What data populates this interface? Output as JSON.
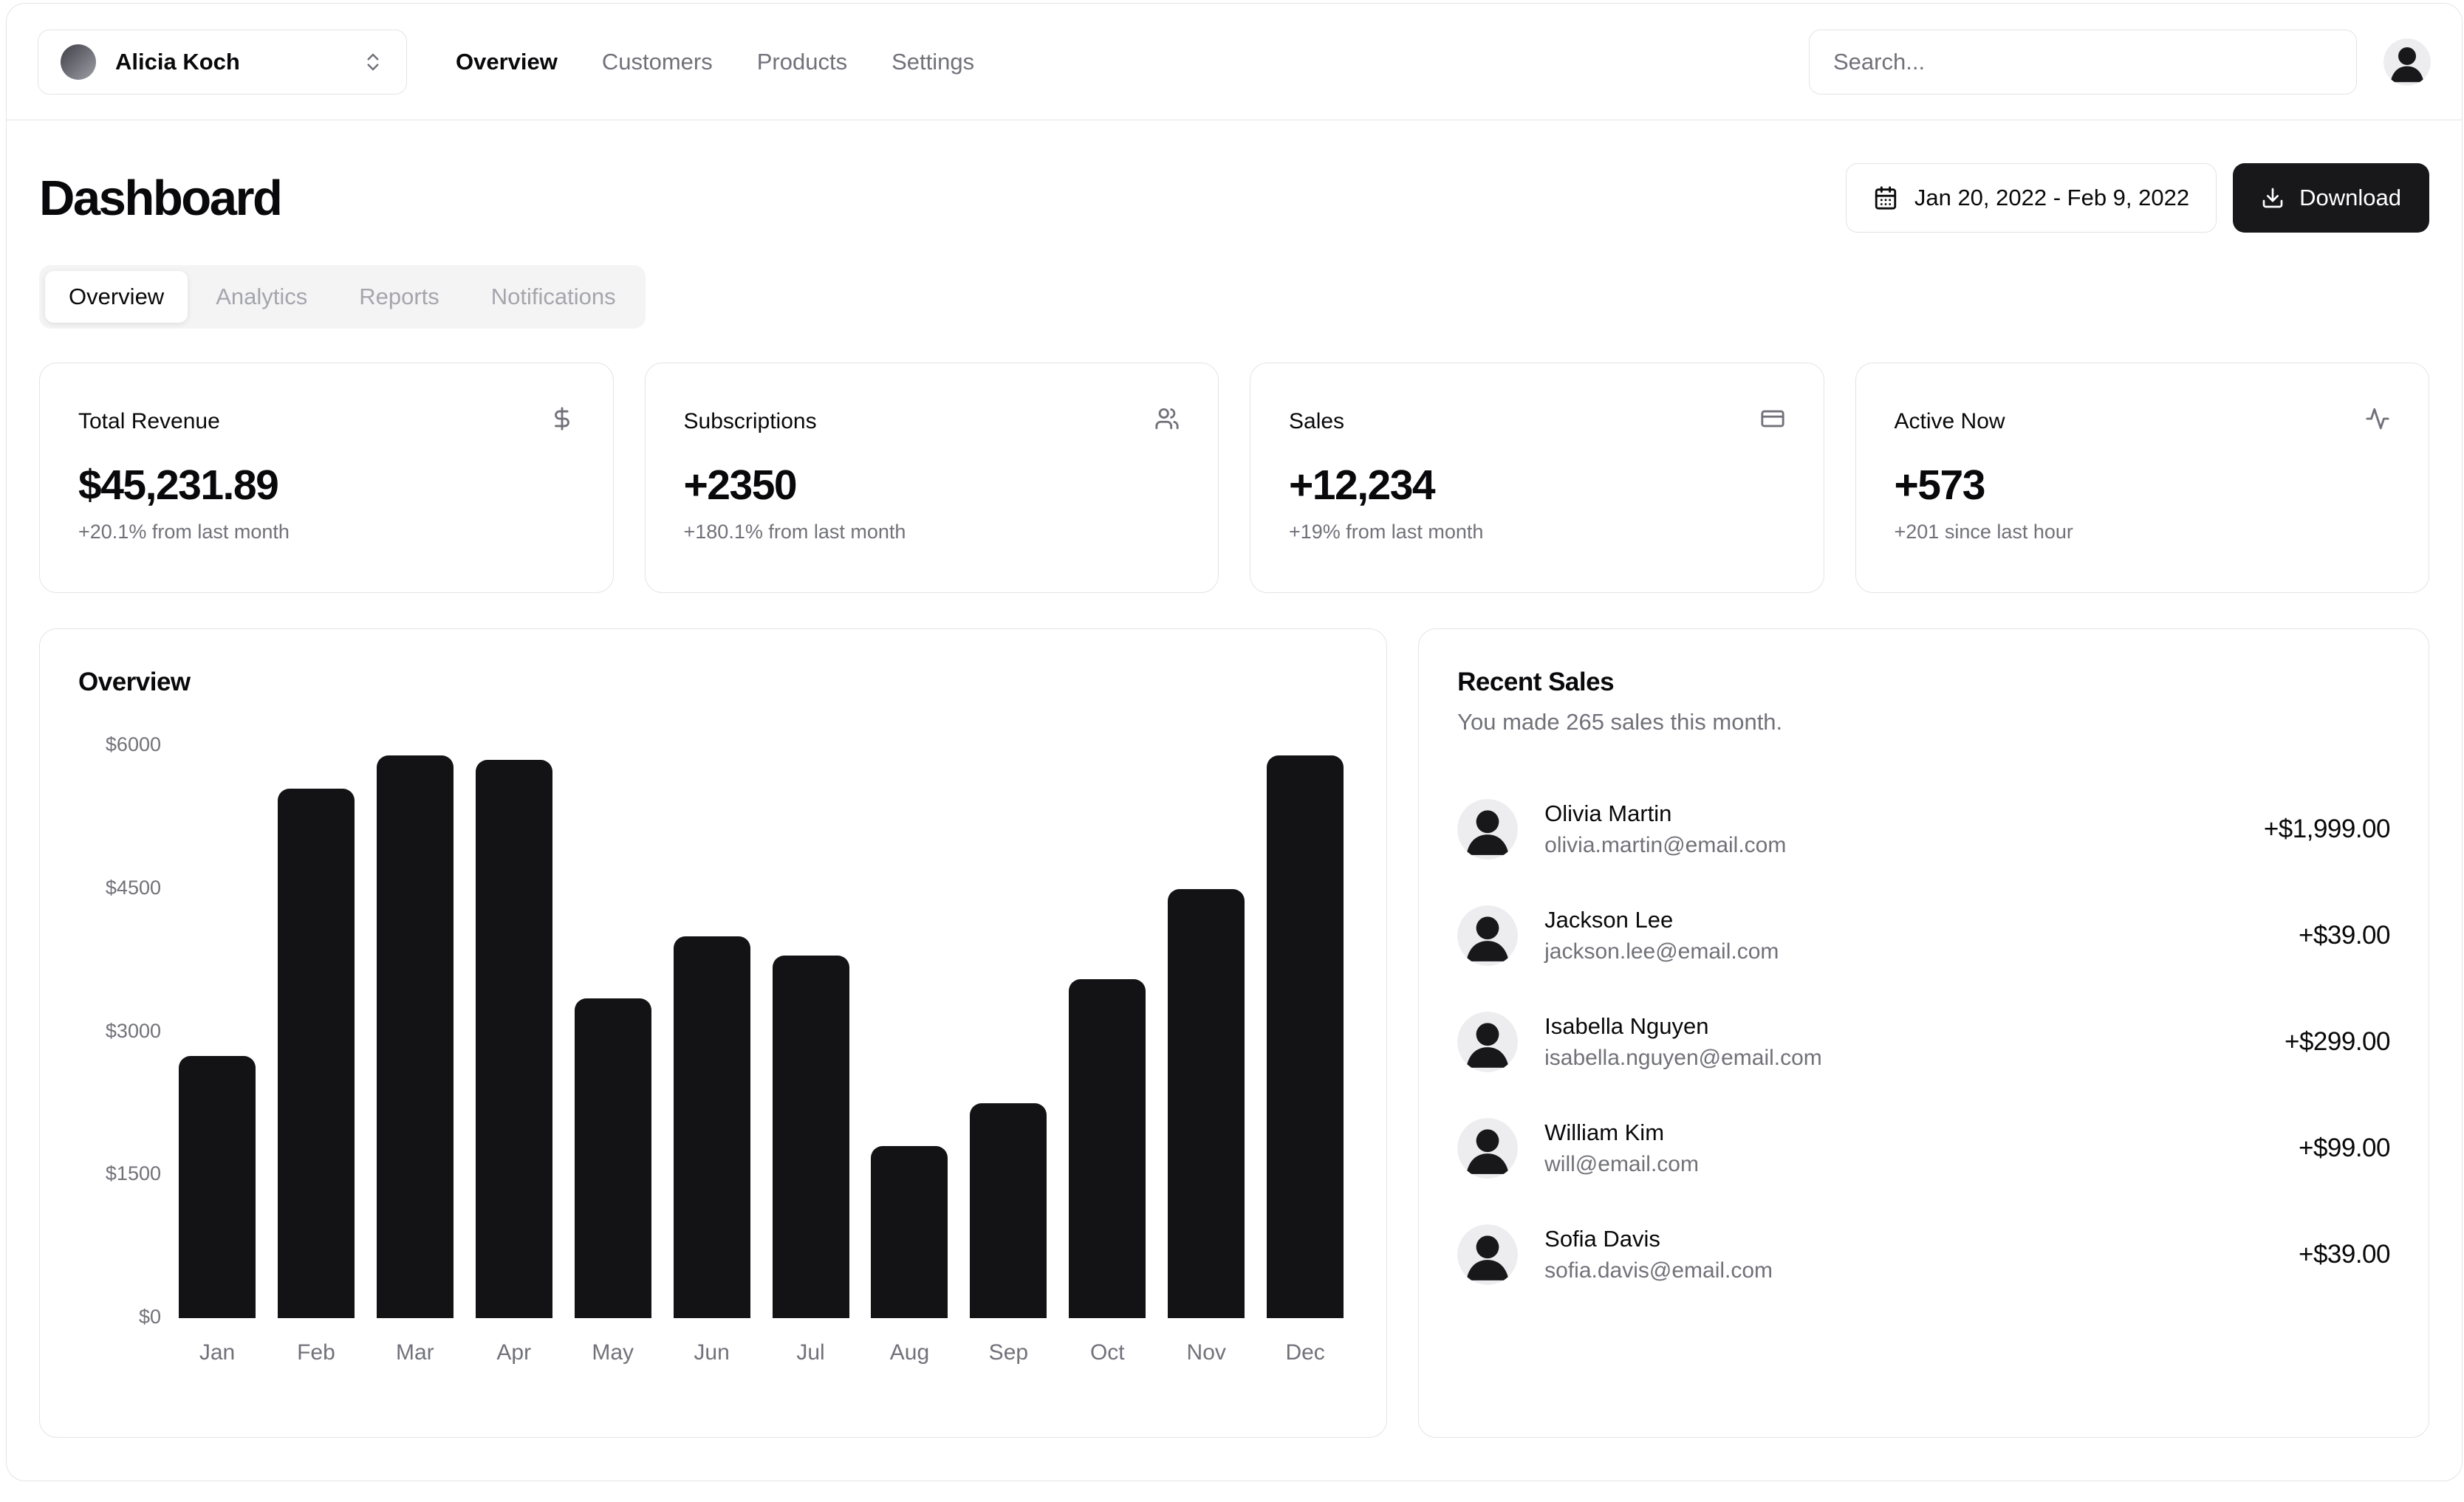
{
  "header": {
    "team": {
      "name": "Alicia Koch"
    },
    "nav": [
      {
        "label": "Overview",
        "active": true
      },
      {
        "label": "Customers",
        "active": false
      },
      {
        "label": "Products",
        "active": false
      },
      {
        "label": "Settings",
        "active": false
      }
    ],
    "search": {
      "placeholder": "Search..."
    }
  },
  "page": {
    "title": "Dashboard"
  },
  "toolbar": {
    "date_range": "Jan 20, 2022 - Feb 9, 2022",
    "download_label": "Download"
  },
  "tabs": [
    {
      "label": "Overview",
      "active": true
    },
    {
      "label": "Analytics",
      "active": false
    },
    {
      "label": "Reports",
      "active": false
    },
    {
      "label": "Notifications",
      "active": false
    }
  ],
  "stats": [
    {
      "title": "Total Revenue",
      "icon": "dollar-sign-icon",
      "value": "$45,231.89",
      "change": "+20.1% from last month"
    },
    {
      "title": "Subscriptions",
      "icon": "users-icon",
      "value": "+2350",
      "change": "+180.1% from last month"
    },
    {
      "title": "Sales",
      "icon": "credit-card-icon",
      "value": "+12,234",
      "change": "+19% from last month"
    },
    {
      "title": "Active Now",
      "icon": "activity-icon",
      "value": "+573",
      "change": "+201 since last hour"
    }
  ],
  "chart_data": {
    "type": "bar",
    "title": "Overview",
    "categories": [
      "Jan",
      "Feb",
      "Mar",
      "Apr",
      "May",
      "Jun",
      "Jul",
      "Aug",
      "Sep",
      "Oct",
      "Nov",
      "Dec"
    ],
    "values": [
      2750,
      5550,
      5900,
      5850,
      3350,
      4000,
      3800,
      1800,
      2250,
      3550,
      4500,
      5900
    ],
    "ylim": [
      0,
      6000
    ],
    "ytick_values": [
      0,
      1500,
      3000,
      4500,
      6000
    ],
    "ytick_labels": [
      "$0",
      "$1500",
      "$3000",
      "$4500",
      "$6000"
    ],
    "xlabel": "",
    "ylabel": "",
    "grid": false,
    "legend": "none",
    "bar_color": "#131316",
    "tick_color": "#71717a"
  },
  "recent_sales": {
    "title": "Recent Sales",
    "subtitle": "You made 265 sales this month.",
    "items": [
      {
        "name": "Olivia Martin",
        "email": "olivia.martin@email.com",
        "amount": "+$1,999.00"
      },
      {
        "name": "Jackson Lee",
        "email": "jackson.lee@email.com",
        "amount": "+$39.00"
      },
      {
        "name": "Isabella Nguyen",
        "email": "isabella.nguyen@email.com",
        "amount": "+$299.00"
      },
      {
        "name": "William Kim",
        "email": "will@email.com",
        "amount": "+$99.00"
      },
      {
        "name": "Sofia Davis",
        "email": "sofia.davis@email.com",
        "amount": "+$39.00"
      }
    ]
  },
  "colors": {
    "accent": "#18181b",
    "border": "#e4e4e7",
    "muted_text": "#71717a",
    "tab_bg": "#f4f4f5"
  }
}
